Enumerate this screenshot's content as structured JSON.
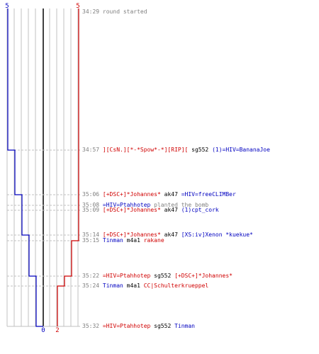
{
  "colors": {
    "team_a": "#0000c0",
    "team_b": "#d00000",
    "grid": "#c0c0c0",
    "text_gray": "#808080",
    "center_line": "#000000"
  },
  "chart_data": {
    "type": "line",
    "title": "",
    "xlabel": "",
    "ylabel": "",
    "start_labels": {
      "blue": "5",
      "red": "5"
    },
    "end_labels": {
      "blue": "0",
      "red": "2"
    },
    "series": [
      {
        "color": "blue",
        "alive_by_event": [
          5,
          4,
          3,
          3,
          3,
          2,
          2,
          1,
          1,
          0
        ]
      },
      {
        "color": "red",
        "alive_by_event": [
          5,
          5,
          5,
          5,
          5,
          5,
          4,
          3,
          2,
          2
        ]
      }
    ]
  },
  "events": [
    {
      "time": "34:29",
      "segments": [
        {
          "text": "round started",
          "color": "gray"
        }
      ]
    },
    {
      "time": "34:57",
      "segments": [
        {
          "text": "][CsN.][*-*Spow*-*][RIP][",
          "color": "red"
        },
        {
          "text": " sg552 ",
          "color": "black"
        },
        {
          "text": "(1)=HIV=BananaJoe",
          "color": "blue"
        }
      ]
    },
    {
      "time": "35:06",
      "segments": [
        {
          "text": "[+DSC+]*Johannes*",
          "color": "red"
        },
        {
          "text": " ak47 ",
          "color": "black"
        },
        {
          "text": "=HIV=freeCLIMBer",
          "color": "blue"
        }
      ]
    },
    {
      "time": "35:08",
      "segments": [
        {
          "text": "=HIV=Ptahhotep",
          "color": "blue"
        },
        {
          "text": " planted the bomb",
          "color": "gray"
        }
      ]
    },
    {
      "time": "35:09",
      "segments": [
        {
          "text": "[+DSC+]*Johannes*",
          "color": "red"
        },
        {
          "text": " ak47 ",
          "color": "black"
        },
        {
          "text": "(1)cpt_cork",
          "color": "blue"
        }
      ]
    },
    {
      "time": "35:14",
      "segments": [
        {
          "text": "[+DSC+]*Johannes*",
          "color": "red"
        },
        {
          "text": " ak47 ",
          "color": "black"
        },
        {
          "text": "[XS:iv]Xenon *kuekue*",
          "color": "blue"
        }
      ]
    },
    {
      "time": "35:15",
      "segments": [
        {
          "text": "Tinman",
          "color": "blue"
        },
        {
          "text": " m4a1 ",
          "color": "black"
        },
        {
          "text": "rakane",
          "color": "red"
        }
      ]
    },
    {
      "time": "35:22",
      "segments": [
        {
          "text": "=HIV=Ptahhotep",
          "color": "red"
        },
        {
          "text": " sg552 ",
          "color": "black"
        },
        {
          "text": "[+DSC+]*Johannes*",
          "color": "red"
        }
      ]
    },
    {
      "time": "35:24",
      "segments": [
        {
          "text": "Tinman",
          "color": "blue"
        },
        {
          "text": " m4a1 ",
          "color": "black"
        },
        {
          "text": "CC|Schulterkrueppel",
          "color": "red"
        }
      ]
    },
    {
      "time": "35:32",
      "segments": [
        {
          "text": "=HIV=Ptahhotep",
          "color": "red"
        },
        {
          "text": " sg552 ",
          "color": "black"
        },
        {
          "text": "Tinman",
          "color": "blue"
        }
      ]
    }
  ]
}
